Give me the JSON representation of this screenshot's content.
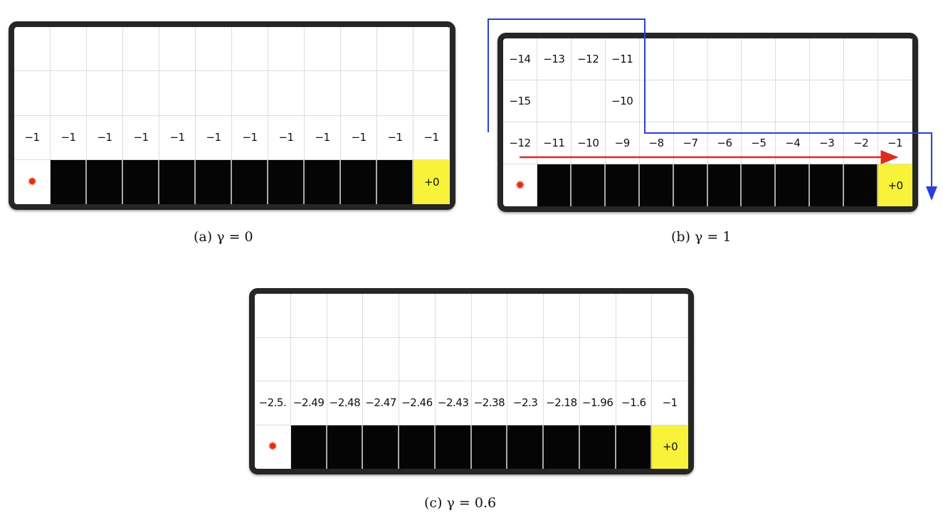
{
  "panels": [
    {
      "id": "a",
      "caption": "(a) γ = 0",
      "rows": [
        [
          null,
          null,
          null,
          null,
          null,
          null,
          null,
          null,
          null,
          null,
          null,
          null
        ],
        [
          null,
          null,
          null,
          null,
          null,
          null,
          null,
          null,
          null,
          null,
          null,
          null
        ],
        [
          "−1",
          "−1",
          "−1",
          "−1",
          "−1",
          "−1",
          "−1",
          "−1",
          "−1",
          "−1",
          "−1",
          "−1"
        ]
      ],
      "goal_label": "+0"
    },
    {
      "id": "b",
      "caption": "(b) γ = 1",
      "rows": [
        [
          "−14",
          "−13",
          "−12",
          "−11",
          null,
          null,
          null,
          null,
          null,
          null,
          null,
          null
        ],
        [
          "−15",
          null,
          null,
          "−10",
          null,
          null,
          null,
          null,
          null,
          null,
          null,
          null
        ],
        [
          "−12",
          "−11",
          "−10",
          "−9",
          "−8",
          "−7",
          "−6",
          "−5",
          "−4",
          "−3",
          "−2",
          "−1"
        ]
      ],
      "goal_label": "+0",
      "arrows": {
        "red": "#e02a1a",
        "blue": "#2a3fd9"
      }
    },
    {
      "id": "c",
      "caption": "(c) γ = 0.6",
      "rows": [
        [
          null,
          null,
          null,
          null,
          null,
          null,
          null,
          null,
          null,
          null,
          null,
          null
        ],
        [
          null,
          null,
          null,
          null,
          null,
          null,
          null,
          null,
          null,
          null,
          null,
          null
        ],
        [
          "−2.5.",
          "−2.49",
          "−2.48",
          "−2.47",
          "−2.46",
          "−2.43",
          "−2.38",
          "−2.3",
          "−2.18",
          "−1.96",
          "−1.6",
          "−1"
        ]
      ],
      "goal_label": "+0"
    }
  ],
  "colors": {
    "cliff": "#050505",
    "goal": "#f8f23a",
    "agent": "#e03010",
    "frame": "#262626"
  },
  "icons": {
    "agent": "turtle-icon"
  }
}
